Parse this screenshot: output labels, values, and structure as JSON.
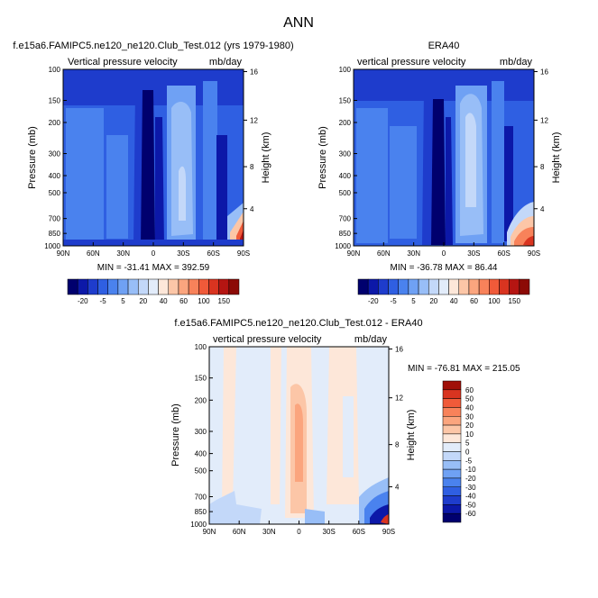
{
  "figure_title": "ANN",
  "colors": {
    "cb_top": [
      "#00006e",
      "#0c18a8",
      "#1e3ccc",
      "#2f5fe2",
      "#4a82ee",
      "#6fa1f4",
      "#98bef7",
      "#c3d8f9",
      "#e2ecfa",
      "#fde7d9",
      "#fcc6a7",
      "#fba57e",
      "#f8825a",
      "#f05a39",
      "#d93420",
      "#b51512",
      "#8c0a06"
    ],
    "cb_diff": [
      "#00006e",
      "#0c18a8",
      "#1e3ccc",
      "#2f5fe2",
      "#4a82ee",
      "#6fa1f4",
      "#98bef7",
      "#c3d8f9",
      "#e2ecfa",
      "#fde7d9",
      "#fcc6a7",
      "#fba57e",
      "#f8825a",
      "#f05a39",
      "#d93420",
      "#a01008"
    ]
  },
  "chart_data": [
    {
      "type": "heatmap",
      "title": "f.e15a6.FAMIPC5.ne120_ne120.Club_Test.012 (yrs 1979-1980)",
      "left_label": "Vertical pressure velocity",
      "right_label": "mb/day",
      "ylabel": "Pressure (mb)",
      "y2label": "Height (km)",
      "xticks": [
        "90N",
        "60N",
        "30N",
        "0",
        "30S",
        "60S",
        "90S"
      ],
      "yticks": [
        "100",
        "150",
        "200",
        "300",
        "400",
        "500",
        "700",
        "850",
        "1000"
      ],
      "y2ticks": [
        "16",
        "12",
        "8",
        "4"
      ],
      "stats": "MIN = -31.41  MAX = 392.59",
      "colorbar_labels": [
        "-20",
        "-5",
        "5",
        "20",
        "40",
        "60",
        "100",
        "150"
      ]
    },
    {
      "type": "heatmap",
      "title": "ERA40",
      "left_label": "vertical pressure velocity",
      "right_label": "mb/day",
      "ylabel": "Pressure (mb)",
      "y2label": "Height (km)",
      "xticks": [
        "90N",
        "60N",
        "30N",
        "0",
        "30S",
        "60S",
        "90S"
      ],
      "yticks": [
        "100",
        "150",
        "200",
        "300",
        "400",
        "500",
        "700",
        "850",
        "1000"
      ],
      "y2ticks": [
        "16",
        "12",
        "8",
        "4"
      ],
      "stats": "MIN = -36.78  MAX =  86.44",
      "colorbar_labels": [
        "-20",
        "-5",
        "5",
        "20",
        "40",
        "60",
        "100",
        "150"
      ]
    },
    {
      "type": "heatmap",
      "title": "f.e15a6.FAMIPC5.ne120_ne120.Club_Test.012 - ERA40",
      "left_label": "vertical pressure velocity",
      "right_label": "mb/day",
      "ylabel": "Pressure (mb)",
      "y2label": "Height (km)",
      "xticks": [
        "90N",
        "60N",
        "30N",
        "0",
        "30S",
        "60S",
        "90S"
      ],
      "yticks": [
        "100",
        "150",
        "200",
        "300",
        "400",
        "500",
        "700",
        "850",
        "1000"
      ],
      "y2ticks": [
        "16",
        "12",
        "8",
        "4"
      ],
      "stats": "MIN = -76.81  MAX = 215.05",
      "colorbar_labels": [
        "60",
        "50",
        "40",
        "30",
        "20",
        "10",
        "5",
        "0",
        "-5",
        "-10",
        "-20",
        "-30",
        "-40",
        "-50",
        "-60"
      ]
    }
  ]
}
